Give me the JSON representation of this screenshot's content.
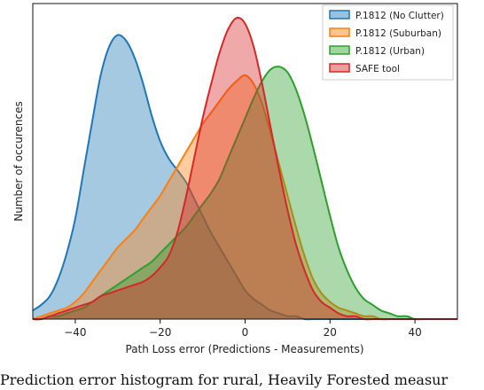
{
  "chart_data": {
    "type": "area",
    "xlabel": "Path Loss error (Predictions - Measurements)",
    "ylabel": "Number of occurences",
    "xlim": [
      -50,
      50
    ],
    "ylim": [
      0,
      1.1
    ],
    "xticks": [
      -40,
      -20,
      0,
      20,
      40
    ],
    "xtick_labels": [
      "−40",
      "−20",
      "0",
      "20",
      "40"
    ],
    "yticks_shown": false,
    "grid": false,
    "legend_position": "top-right",
    "x": [
      -50,
      -48,
      -46,
      -44,
      -42,
      -40,
      -38,
      -36,
      -34,
      -32,
      -30,
      -28,
      -26,
      -24,
      -22,
      -20,
      -18,
      -16,
      -14,
      -12,
      -10,
      -8,
      -6,
      -4,
      -2,
      0,
      2,
      4,
      6,
      8,
      10,
      12,
      14,
      16,
      18,
      20,
      22,
      24,
      26,
      28,
      30,
      32,
      34,
      36,
      38,
      40,
      42,
      44,
      46,
      48,
      50
    ],
    "series": [
      {
        "name": "P.1812 (No Clutter)",
        "color": "#1f77b4",
        "values": [
          0.03,
          0.05,
          0.08,
          0.14,
          0.23,
          0.35,
          0.52,
          0.69,
          0.85,
          0.95,
          0.99,
          0.97,
          0.91,
          0.82,
          0.71,
          0.62,
          0.56,
          0.52,
          0.48,
          0.42,
          0.36,
          0.3,
          0.25,
          0.2,
          0.15,
          0.1,
          0.07,
          0.05,
          0.03,
          0.02,
          0.01,
          0.01,
          0.0,
          0.0,
          0.0,
          0.0,
          0.0,
          0.0,
          0.0,
          0.0,
          0.0,
          0.0,
          0.0,
          0.0,
          0.0,
          0.0,
          0.0,
          0.0,
          0.0,
          0.0,
          0.0
        ]
      },
      {
        "name": "P.1812 (Suburban)",
        "color": "#ff7f0e",
        "values": [
          0.0,
          0.01,
          0.02,
          0.03,
          0.04,
          0.06,
          0.09,
          0.13,
          0.17,
          0.21,
          0.25,
          0.28,
          0.31,
          0.35,
          0.39,
          0.43,
          0.48,
          0.53,
          0.58,
          0.63,
          0.68,
          0.72,
          0.76,
          0.8,
          0.83,
          0.85,
          0.82,
          0.75,
          0.65,
          0.54,
          0.43,
          0.32,
          0.22,
          0.14,
          0.09,
          0.06,
          0.04,
          0.03,
          0.02,
          0.01,
          0.01,
          0.0,
          0.0,
          0.0,
          0.0,
          0.0,
          0.0,
          0.0,
          0.0,
          0.0,
          0.0
        ]
      },
      {
        "name": "P.1812 (Urban)",
        "color": "#2ca02c",
        "values": [
          0.0,
          0.0,
          0.01,
          0.01,
          0.02,
          0.03,
          0.04,
          0.06,
          0.08,
          0.1,
          0.12,
          0.14,
          0.16,
          0.18,
          0.2,
          0.23,
          0.26,
          0.29,
          0.32,
          0.36,
          0.4,
          0.44,
          0.49,
          0.56,
          0.63,
          0.7,
          0.77,
          0.83,
          0.87,
          0.88,
          0.86,
          0.8,
          0.71,
          0.6,
          0.48,
          0.36,
          0.25,
          0.17,
          0.11,
          0.07,
          0.05,
          0.03,
          0.02,
          0.01,
          0.01,
          0.0,
          0.0,
          0.0,
          0.0,
          0.0,
          0.0
        ]
      },
      {
        "name": "SAFE tool",
        "color": "#d62728",
        "values": [
          0.0,
          0.0,
          0.01,
          0.02,
          0.03,
          0.04,
          0.05,
          0.06,
          0.08,
          0.09,
          0.1,
          0.11,
          0.12,
          0.13,
          0.15,
          0.18,
          0.22,
          0.3,
          0.42,
          0.56,
          0.7,
          0.82,
          0.93,
          1.01,
          1.05,
          1.03,
          0.95,
          0.82,
          0.67,
          0.52,
          0.38,
          0.26,
          0.17,
          0.1,
          0.06,
          0.04,
          0.02,
          0.01,
          0.01,
          0.0,
          0.0,
          0.0,
          0.0,
          0.0,
          0.0,
          0.0,
          0.0,
          0.0,
          0.0,
          0.0,
          0.0
        ]
      }
    ]
  },
  "caption": "Prediction error histogram for rural, Heavily Forested measur"
}
